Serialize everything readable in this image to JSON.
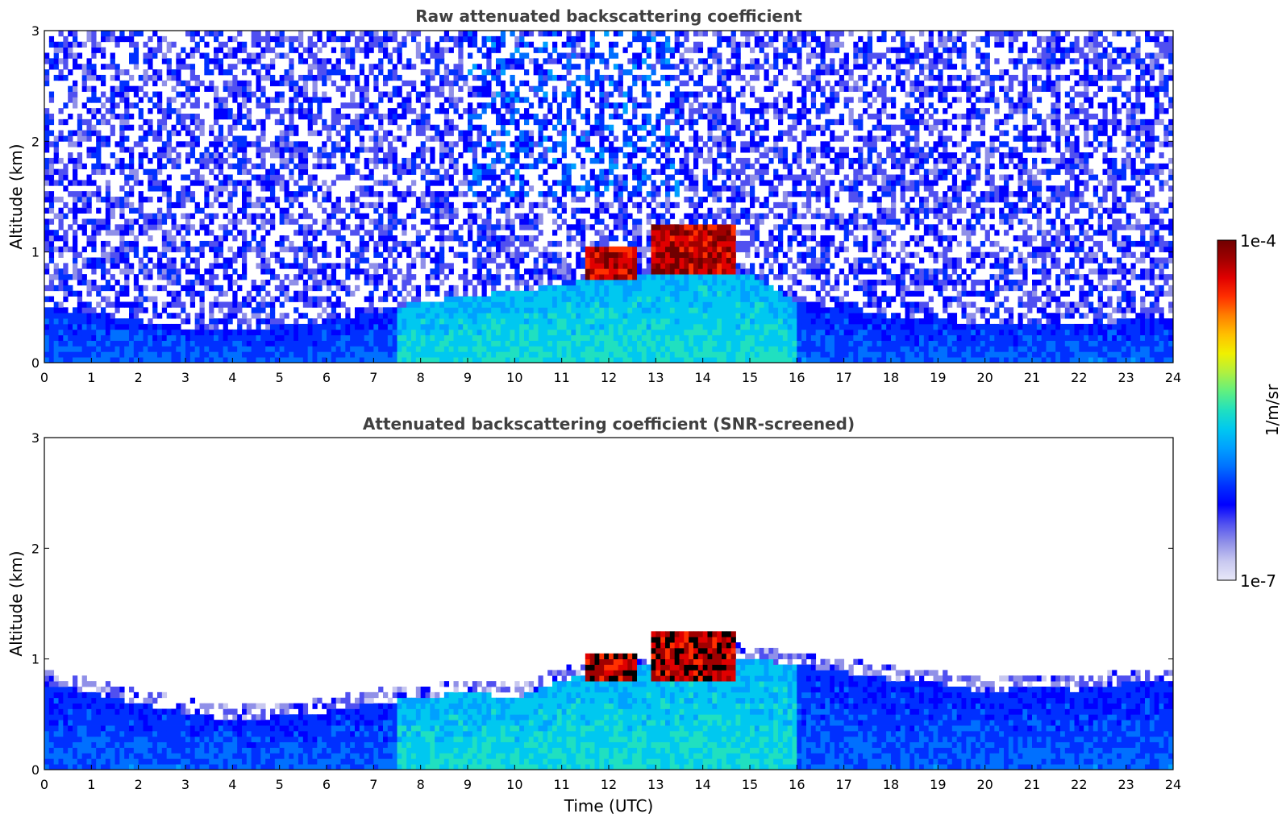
{
  "colorbar": {
    "label": "1/m/sr",
    "max_label": "1e-4",
    "min_label": "1e-7",
    "scale": "log",
    "range": [
      1e-07,
      0.0001
    ],
    "colors": [
      "#e8e8f8",
      "#c8c8f0",
      "#9090e8",
      "#5050f0",
      "#0000ff",
      "#0030ff",
      "#0070ff",
      "#00a0ff",
      "#00c8f0",
      "#20e0c0",
      "#60f080",
      "#b0f040",
      "#f0f000",
      "#ffc000",
      "#ff8000",
      "#ff3000",
      "#e00000",
      "#a00000",
      "#700000"
    ]
  },
  "chart_data": [
    {
      "id": "raw",
      "type": "heatmap",
      "title": "Raw attenuated backscattering coefficient",
      "xlabel": "",
      "ylabel": "Altitude (km)",
      "xlim": [
        0,
        24
      ],
      "ylim": [
        0,
        3
      ],
      "xticks": [
        "0",
        "1",
        "2",
        "3",
        "4",
        "5",
        "6",
        "7",
        "8",
        "9",
        "10",
        "11",
        "12",
        "13",
        "14",
        "15",
        "16",
        "17",
        "18",
        "19",
        "20",
        "21",
        "22",
        "23",
        "24"
      ],
      "yticks": [
        "0",
        "1",
        "2",
        "3"
      ],
      "grid": false,
      "boundary_layer_top_km": {
        "x": [
          0,
          1,
          2,
          3,
          4,
          5,
          6,
          7,
          8,
          9,
          10,
          11,
          12,
          13,
          14,
          15,
          16,
          17,
          18,
          19,
          20,
          21,
          22,
          23,
          24
        ],
        "y": [
          0.5,
          0.45,
          0.38,
          0.32,
          0.3,
          0.33,
          0.38,
          0.45,
          0.55,
          0.6,
          0.65,
          0.7,
          0.8,
          0.8,
          0.9,
          0.8,
          0.55,
          0.5,
          0.42,
          0.38,
          0.36,
          0.36,
          0.36,
          0.38,
          0.4
        ]
      },
      "cloud_layers": [
        {
          "x_start": 11.5,
          "x_end": 12.6,
          "base_km": 0.75,
          "top_km": 1.05
        },
        {
          "x_start": 12.9,
          "x_end": 14.7,
          "base_km": 0.8,
          "top_km": 1.25
        }
      ]
    },
    {
      "id": "screened",
      "type": "heatmap",
      "title": "Attenuated backscattering coefficient (SNR-screened)",
      "xlabel": "Time (UTC)",
      "ylabel": "Altitude (km)",
      "xlim": [
        0,
        24
      ],
      "ylim": [
        0,
        3
      ],
      "xticks": [
        "0",
        "1",
        "2",
        "3",
        "4",
        "5",
        "6",
        "7",
        "8",
        "9",
        "10",
        "11",
        "12",
        "13",
        "14",
        "15",
        "16",
        "17",
        "18",
        "19",
        "20",
        "21",
        "22",
        "23",
        "24"
      ],
      "yticks": [
        "0",
        "1",
        "2",
        "3"
      ],
      "grid": false,
      "boundary_layer_top_km": {
        "x": [
          0,
          1,
          2,
          3,
          4,
          5,
          6,
          7,
          8,
          9,
          10,
          11,
          12,
          13,
          14,
          15,
          16,
          17,
          18,
          19,
          20,
          21,
          22,
          23,
          24
        ],
        "y": [
          0.78,
          0.7,
          0.6,
          0.52,
          0.45,
          0.48,
          0.52,
          0.6,
          0.65,
          0.7,
          0.65,
          0.8,
          0.95,
          0.95,
          1.1,
          1.0,
          0.95,
          0.88,
          0.82,
          0.78,
          0.7,
          0.75,
          0.72,
          0.78,
          0.78
        ]
      },
      "cloud_layers": [
        {
          "x_start": 11.5,
          "x_end": 12.6,
          "base_km": 0.78,
          "top_km": 1.05
        },
        {
          "x_start": 12.9,
          "x_end": 14.7,
          "base_km": 0.82,
          "top_km": 1.25
        }
      ]
    }
  ]
}
